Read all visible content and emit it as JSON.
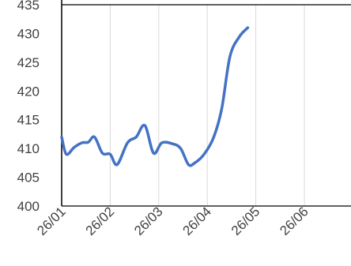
{
  "chart_data": {
    "type": "line",
    "title": "",
    "xlabel": "",
    "ylabel": "",
    "x_tick_labels": [
      "26/01",
      "26/02",
      "26/03",
      "26/04",
      "26/05",
      "26/06"
    ],
    "y_tick_labels": [
      "400",
      "405",
      "410",
      "415",
      "420",
      "425",
      "430",
      "435"
    ],
    "ylim": [
      400,
      435
    ],
    "grid": "vertical",
    "legend": "none",
    "series": [
      {
        "color": "#4472C4",
        "points": [
          {
            "x": "26/01",
            "y": 412
          },
          {
            "x": "29/01",
            "y": 409
          },
          {
            "x": "03/02",
            "y": 410.2
          },
          {
            "x": "08/02",
            "y": 411
          },
          {
            "x": "12/02",
            "y": 411.1
          },
          {
            "x": "16/02",
            "y": 412
          },
          {
            "x": "21/02",
            "y": 409.2
          },
          {
            "x": "26/02",
            "y": 409
          },
          {
            "x": "02/03",
            "y": 407.2
          },
          {
            "x": "08/03",
            "y": 411
          },
          {
            "x": "13/03",
            "y": 412
          },
          {
            "x": "18/03",
            "y": 414
          },
          {
            "x": "23/03",
            "y": 409.2
          },
          {
            "x": "28/03",
            "y": 411
          },
          {
            "x": "04/04",
            "y": 410.8
          },
          {
            "x": "09/04",
            "y": 410
          },
          {
            "x": "14/04",
            "y": 407.2
          },
          {
            "x": "18/04",
            "y": 407.5
          },
          {
            "x": "24/04",
            "y": 409
          },
          {
            "x": "30/04",
            "y": 412
          },
          {
            "x": "05/05",
            "y": 417
          },
          {
            "x": "10/05",
            "y": 426
          },
          {
            "x": "16/05",
            "y": 429.5
          },
          {
            "x": "21/05",
            "y": 431
          }
        ]
      }
    ]
  }
}
